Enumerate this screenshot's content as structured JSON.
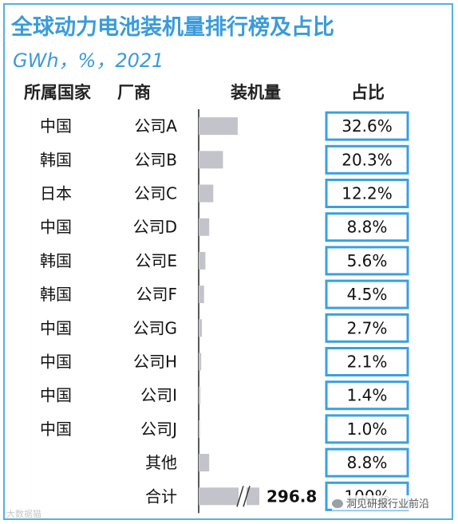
{
  "header": {
    "title": "全球动力电池装机量排行榜及占比",
    "subtitle": "GWh，%，2021"
  },
  "columns": {
    "country": "所属国家",
    "company": "厂商",
    "volume": "装机量",
    "share": "占比"
  },
  "chart_data": {
    "type": "bar",
    "orientation": "horizontal",
    "title": "全球动力电池装机量排行榜及占比",
    "subtitle": "GWh，%，2021",
    "columns": [
      "所属国家",
      "厂商",
      "装机量",
      "占比"
    ],
    "countries": [
      "中国",
      "韩国",
      "日本",
      "中国",
      "韩国",
      "韩国",
      "中国",
      "中国",
      "中国",
      "中国",
      "",
      ""
    ],
    "categories": [
      "公司A",
      "公司B",
      "公司C",
      "公司D",
      "公司E",
      "公司F",
      "公司G",
      "公司H",
      "公司I",
      "公司J",
      "其他",
      "合计"
    ],
    "values": [
      32.6,
      20.3,
      12.2,
      8.8,
      5.6,
      4.5,
      2.7,
      2.1,
      1.4,
      1.0,
      8.8,
      100
    ],
    "labels": [
      "32.6%",
      "20.3%",
      "12.2%",
      "8.8%",
      "5.6%",
      "4.5%",
      "2.7%",
      "2.1%",
      "1.4%",
      "1.0%",
      "8.8%",
      "100%"
    ],
    "total_value": "296.8",
    "total_bar_broken": true,
    "bar_color": "#c3c3cb",
    "label_box_color": "#3aa0e0"
  },
  "footer": {
    "left_watermark": "大数据猫",
    "right_watermark": "洞见研报行业前沿"
  }
}
